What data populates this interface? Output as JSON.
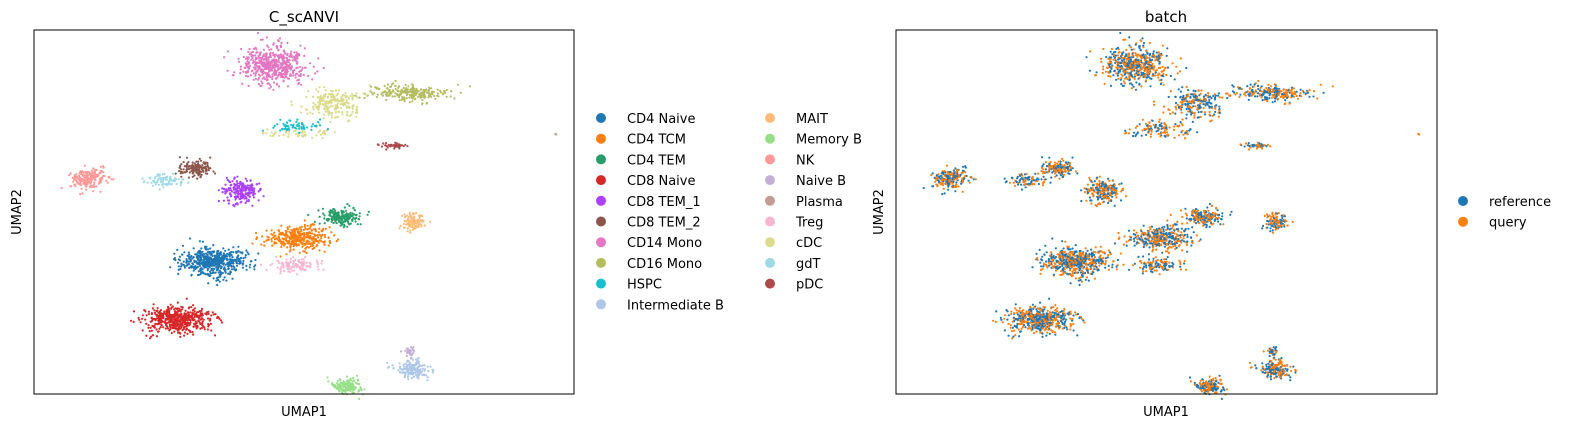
{
  "chart_data": [
    {
      "type": "scatter",
      "title": "C_scANVI",
      "xlabel": "UMAP1",
      "ylabel": "UMAP2",
      "xlim": [
        -8,
        22
      ],
      "ylim": [
        -12,
        10
      ],
      "grid": false,
      "ticks": false,
      "legend_placement": "right",
      "legend_columns": 2,
      "legend": [
        {
          "name": "CD4 Naive",
          "color": "#1f77b4"
        },
        {
          "name": "CD4 TCM",
          "color": "#ff7f0e"
        },
        {
          "name": "CD4 TEM",
          "color": "#279e68"
        },
        {
          "name": "CD8 Naive",
          "color": "#d62728"
        },
        {
          "name": "CD8 TEM_1",
          "color": "#aa40fc"
        },
        {
          "name": "CD8 TEM_2",
          "color": "#8c564b"
        },
        {
          "name": "CD14 Mono",
          "color": "#e377c2"
        },
        {
          "name": "CD16 Mono",
          "color": "#b5bd61"
        },
        {
          "name": "HSPC",
          "color": "#17becf"
        },
        {
          "name": "Intermediate B",
          "color": "#aec7e8"
        },
        {
          "name": "MAIT",
          "color": "#ffbb78"
        },
        {
          "name": "Memory B",
          "color": "#98df8a"
        },
        {
          "name": "NK",
          "color": "#ff9896"
        },
        {
          "name": "Naive B",
          "color": "#c5b0d5"
        },
        {
          "name": "Plasma",
          "color": "#c49c94"
        },
        {
          "name": "Treg",
          "color": "#f7b6d2"
        },
        {
          "name": "cDC",
          "color": "#dbdb8d"
        },
        {
          "name": "gdT",
          "color": "#9edae5"
        },
        {
          "name": "pDC",
          "color": "#ad494a"
        }
      ],
      "clusters": [
        {
          "label": "CD14 Mono",
          "center": [
            5.3,
            7.9
          ],
          "spread": [
            1.6,
            1.0
          ],
          "n": 520
        },
        {
          "label": "CD16 Mono",
          "center": [
            12.8,
            6.2
          ],
          "spread": [
            2.0,
            0.45
          ],
          "n": 230
        },
        {
          "label": "cDC",
          "center": [
            8.6,
            5.6
          ],
          "spread": [
            1.5,
            0.8
          ],
          "n": 220
        },
        {
          "label": "cDC",
          "center": [
            7.0,
            3.8
          ],
          "spread": [
            1.8,
            0.3
          ],
          "n": 60
        },
        {
          "label": "HSPC",
          "center": [
            6.5,
            4.2
          ],
          "spread": [
            1.4,
            0.3
          ],
          "n": 60
        },
        {
          "label": "pDC",
          "center": [
            12.0,
            3.0
          ],
          "spread": [
            0.7,
            0.15
          ],
          "n": 45
        },
        {
          "label": "NK",
          "center": [
            -5.0,
            1.0
          ],
          "spread": [
            0.9,
            0.55
          ],
          "n": 200
        },
        {
          "label": "gdT",
          "center": [
            -0.8,
            0.9
          ],
          "spread": [
            1.0,
            0.35
          ],
          "n": 80
        },
        {
          "label": "CD8 TEM_2",
          "center": [
            1.0,
            1.6
          ],
          "spread": [
            0.8,
            0.45
          ],
          "n": 150
        },
        {
          "label": "CD8 TEM_1",
          "center": [
            3.5,
            0.3
          ],
          "spread": [
            1.0,
            0.65
          ],
          "n": 220
        },
        {
          "label": "CD4 TEM",
          "center": [
            9.0,
            -1.3
          ],
          "spread": [
            1.0,
            0.45
          ],
          "n": 180
        },
        {
          "label": "CD4 TCM",
          "center": [
            6.7,
            -2.6
          ],
          "spread": [
            1.5,
            0.65
          ],
          "n": 360
        },
        {
          "label": "MAIT",
          "center": [
            13.1,
            -1.6
          ],
          "spread": [
            0.55,
            0.45
          ],
          "n": 110
        },
        {
          "label": "CD4 Naive",
          "center": [
            2.0,
            -4.0
          ],
          "spread": [
            1.6,
            0.75
          ],
          "n": 560
        },
        {
          "label": "Treg",
          "center": [
            6.5,
            -4.2
          ],
          "spread": [
            1.1,
            0.35
          ],
          "n": 110
        },
        {
          "label": "CD8 Naive",
          "center": [
            0.0,
            -7.5
          ],
          "spread": [
            1.6,
            0.7
          ],
          "n": 520
        },
        {
          "label": "Intermediate B",
          "center": [
            13.0,
            -10.5
          ],
          "spread": [
            0.9,
            0.5
          ],
          "n": 170
        },
        {
          "label": "Naive B",
          "center": [
            12.8,
            -9.4
          ],
          "spread": [
            0.35,
            0.25
          ],
          "n": 35
        },
        {
          "label": "Memory B",
          "center": [
            9.4,
            -11.5
          ],
          "spread": [
            0.8,
            0.45
          ],
          "n": 160
        },
        {
          "label": "Plasma",
          "center": [
            21.0,
            3.7
          ],
          "spread": [
            0.05,
            0.05
          ],
          "n": 2
        }
      ]
    },
    {
      "type": "scatter",
      "title": "batch",
      "xlabel": "UMAP1",
      "ylabel": "UMAP2",
      "xlim": [
        -8,
        22
      ],
      "ylim": [
        -12,
        10
      ],
      "grid": false,
      "ticks": false,
      "legend_placement": "right",
      "legend_columns": 1,
      "legend": [
        {
          "name": "reference",
          "color": "#1f77b4"
        },
        {
          "name": "query",
          "color": "#ff7f0e"
        }
      ]
    }
  ]
}
